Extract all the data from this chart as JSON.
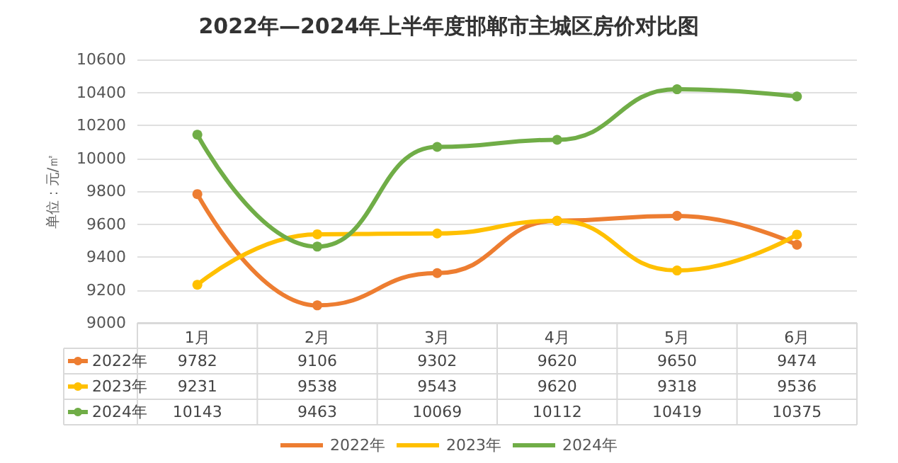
{
  "chart_data": {
    "type": "line",
    "title": "2022年—2024年上半年度邯郸市主城区房价对比图",
    "ylabel": "单位：元/㎡",
    "categories": [
      "1月",
      "2月",
      "3月",
      "4月",
      "5月",
      "6月"
    ],
    "series": [
      {
        "name": "2022年",
        "color": "#ed7d31",
        "values": [
          9782,
          9106,
          9302,
          9620,
          9650,
          9474
        ]
      },
      {
        "name": "2023年",
        "color": "#ffc000",
        "values": [
          9231,
          9538,
          9543,
          9620,
          9318,
          9536
        ]
      },
      {
        "name": "2024年",
        "color": "#70ad47",
        "values": [
          10143,
          9463,
          10069,
          10112,
          10419,
          10375
        ]
      }
    ],
    "ylim": [
      9000,
      10600
    ],
    "yticks": [
      9000,
      9200,
      9400,
      9600,
      9800,
      10000,
      10200,
      10400,
      10600
    ],
    "grid": "y",
    "legend": "bottom",
    "marker": "circle",
    "line_style": "solid",
    "data_labels": true
  }
}
